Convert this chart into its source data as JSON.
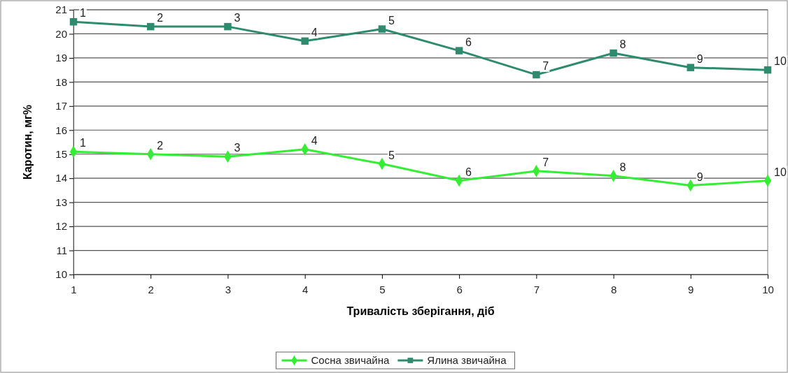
{
  "chart_data": {
    "type": "line",
    "xlabel": "Тривалість зберігання, діб",
    "ylabel": "Каротин, мг%",
    "x": [
      1,
      2,
      3,
      4,
      5,
      6,
      7,
      8,
      9,
      10
    ],
    "xlim": [
      1,
      10
    ],
    "xticks": [
      1,
      2,
      3,
      4,
      5,
      6,
      7,
      8,
      9,
      10
    ],
    "ylim": [
      10,
      21
    ],
    "yticks": [
      10,
      11,
      12,
      13,
      14,
      15,
      16,
      17,
      18,
      19,
      20,
      21
    ],
    "grid": "y",
    "legend": "bottom",
    "line_style": "solid",
    "series": [
      {
        "name": "Сосна звичайна",
        "color": "#33ee33",
        "marker": "diamond",
        "values": [
          15.1,
          15.0,
          14.9,
          15.2,
          14.6,
          13.9,
          14.3,
          14.1,
          13.7,
          13.9
        ]
      },
      {
        "name": "Ялина звичайна",
        "color": "#2e8b6e",
        "marker": "square",
        "values": [
          20.5,
          20.3,
          20.3,
          19.7,
          20.2,
          19.3,
          18.3,
          19.2,
          18.6,
          18.5
        ]
      }
    ],
    "annotations": [
      {
        "text": "1",
        "x": 1,
        "y": 15.1
      },
      {
        "text": "2",
        "x": 2,
        "y": 15.0
      },
      {
        "text": "3",
        "x": 3,
        "y": 14.9
      },
      {
        "text": "4",
        "x": 4,
        "y": 15.2
      },
      {
        "text": "5",
        "x": 5,
        "y": 14.6
      },
      {
        "text": "6",
        "x": 6,
        "y": 13.9
      },
      {
        "text": "7",
        "x": 7,
        "y": 14.3
      },
      {
        "text": "8",
        "x": 8,
        "y": 14.1
      },
      {
        "text": "9",
        "x": 9,
        "y": 13.7
      },
      {
        "text": "10",
        "x": 10,
        "y": 13.9
      },
      {
        "text": "1",
        "x": 1,
        "y": 20.5
      },
      {
        "text": "2",
        "x": 2,
        "y": 20.3
      },
      {
        "text": "3",
        "x": 3,
        "y": 20.3
      },
      {
        "text": "4",
        "x": 4,
        "y": 19.7
      },
      {
        "text": "5",
        "x": 5,
        "y": 20.2
      },
      {
        "text": "6",
        "x": 6,
        "y": 19.3
      },
      {
        "text": "7",
        "x": 7,
        "y": 18.3
      },
      {
        "text": "8",
        "x": 8,
        "y": 19.2
      },
      {
        "text": "9",
        "x": 9,
        "y": 18.6
      },
      {
        "text": "10",
        "x": 10,
        "y": 18.5
      }
    ]
  }
}
